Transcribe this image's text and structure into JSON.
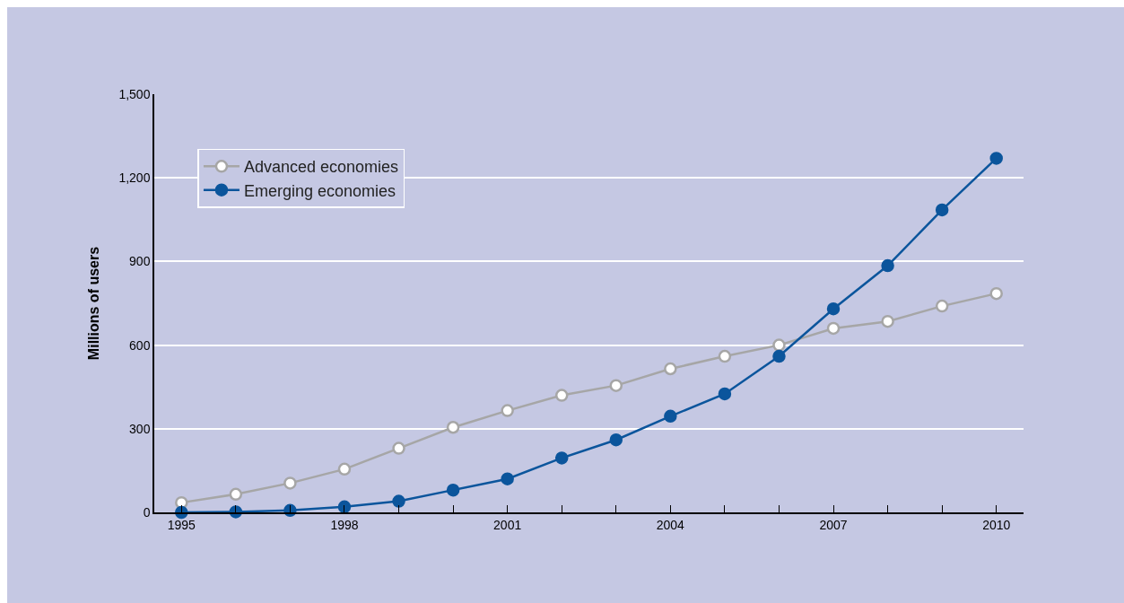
{
  "chart_data": {
    "type": "line",
    "ylabel": "Millions of users",
    "x": [
      1995,
      1996,
      1997,
      1998,
      1999,
      2000,
      2001,
      2002,
      2003,
      2004,
      2005,
      2006,
      2007,
      2008,
      2009,
      2010
    ],
    "series": [
      {
        "name": "Advanced economies",
        "color": "#a6a6a6",
        "values": [
          35,
          65,
          105,
          155,
          230,
          305,
          365,
          420,
          455,
          515,
          560,
          600,
          660,
          685,
          740,
          785
        ]
      },
      {
        "name": "Emerging economies",
        "color": "#0b559c",
        "values": [
          0,
          2,
          7,
          20,
          40,
          80,
          120,
          195,
          260,
          345,
          425,
          560,
          730,
          885,
          1085,
          1270
        ]
      }
    ],
    "xlim": [
      1994.5,
      2010.5
    ],
    "xticks": [
      1995,
      {
        "value": 1996,
        "label": null
      },
      {
        "value": 1997,
        "label": null
      },
      1998,
      {
        "value": 1999,
        "label": null
      },
      {
        "value": 2000,
        "label": null
      },
      2001,
      {
        "value": 2002,
        "label": null
      },
      {
        "value": 2003,
        "label": null
      },
      2004,
      {
        "value": 2005,
        "label": null
      },
      {
        "value": 2006,
        "label": null
      },
      2007,
      {
        "value": 2008,
        "label": null
      },
      {
        "value": 2009,
        "label": null
      },
      2010
    ],
    "ylim": [
      0,
      1500
    ],
    "yticks": [
      0,
      300,
      600,
      900,
      {
        "value": 1200,
        "label": "1,200"
      },
      {
        "value": 1500,
        "label": "1,500"
      }
    ],
    "grid": "y",
    "legend": "top left",
    "marker": "circle",
    "line_style": "solid"
  }
}
